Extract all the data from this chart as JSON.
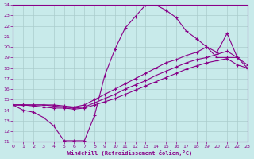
{
  "background_color": "#c8eaea",
  "line_color": "#880088",
  "grid_color": "#aacccc",
  "xlim": [
    0,
    23
  ],
  "ylim": [
    11,
    24
  ],
  "xticks": [
    0,
    1,
    2,
    3,
    4,
    5,
    6,
    7,
    8,
    9,
    10,
    11,
    12,
    13,
    14,
    15,
    16,
    17,
    18,
    19,
    20,
    21,
    22,
    23
  ],
  "yticks": [
    11,
    12,
    13,
    14,
    15,
    16,
    17,
    18,
    19,
    20,
    21,
    22,
    23,
    24
  ],
  "xlabel": "Windchill (Refroidissement éolien,°C)",
  "curves": [
    {
      "x": [
        0,
        1,
        2,
        3,
        4,
        5,
        6,
        7,
        8,
        9,
        10,
        11,
        12,
        13,
        14,
        15,
        16,
        17,
        18,
        19,
        20,
        21,
        22
      ],
      "y": [
        14.5,
        14.0,
        13.8,
        13.3,
        12.5,
        11.1,
        11.1,
        11.1,
        13.5,
        17.3,
        19.8,
        21.8,
        22.9,
        24.0,
        24.0,
        23.5,
        22.8,
        21.5,
        20.8,
        20.0,
        19.0,
        19.0,
        19.0
      ]
    },
    {
      "x": [
        0,
        1,
        2,
        3,
        4,
        5,
        6,
        7,
        8,
        9,
        10,
        11,
        12,
        13,
        14,
        15,
        16,
        17,
        18,
        19,
        20,
        21,
        22,
        23
      ],
      "y": [
        14.5,
        14.5,
        14.5,
        14.5,
        14.5,
        14.4,
        14.3,
        14.5,
        15.0,
        15.5,
        16.0,
        16.5,
        17.0,
        17.5,
        18.0,
        18.5,
        18.8,
        19.2,
        19.5,
        20.0,
        19.5,
        21.3,
        19.0,
        18.3
      ]
    },
    {
      "x": [
        0,
        1,
        2,
        3,
        4,
        5,
        6,
        7,
        8,
        9,
        10,
        11,
        12,
        13,
        14,
        15,
        16,
        17,
        18,
        19,
        20,
        21,
        22,
        23
      ],
      "y": [
        14.5,
        14.5,
        14.5,
        14.5,
        14.4,
        14.3,
        14.2,
        14.3,
        14.7,
        15.1,
        15.5,
        16.0,
        16.4,
        16.8,
        17.3,
        17.7,
        18.1,
        18.5,
        18.8,
        19.0,
        19.3,
        19.6,
        19.0,
        18.0
      ]
    },
    {
      "x": [
        0,
        1,
        2,
        3,
        4,
        5,
        6,
        7,
        8,
        9,
        10,
        11,
        12,
        13,
        14,
        15,
        16,
        17,
        18,
        19,
        20,
        21,
        22,
        23
      ],
      "y": [
        14.5,
        14.5,
        14.4,
        14.3,
        14.2,
        14.2,
        14.1,
        14.2,
        14.5,
        14.8,
        15.1,
        15.5,
        15.9,
        16.3,
        16.7,
        17.1,
        17.5,
        17.9,
        18.2,
        18.5,
        18.7,
        18.9,
        18.3,
        18.0
      ]
    }
  ]
}
